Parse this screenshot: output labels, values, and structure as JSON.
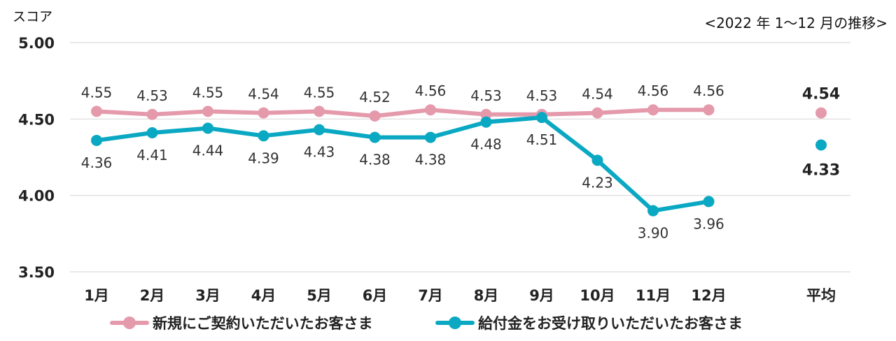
{
  "chart_data": {
    "type": "line",
    "ylabel": "スコア",
    "subtitle": "<2022 年 1〜12 月の推移>",
    "ylim": [
      3.5,
      5.0
    ],
    "yticks": [
      "5.00",
      "4.50",
      "4.00",
      "3.50"
    ],
    "ytick_values": [
      5.0,
      4.5,
      4.0,
      3.5
    ],
    "categories": [
      "1月",
      "2月",
      "3月",
      "4月",
      "5月",
      "6月",
      "7月",
      "8月",
      "9月",
      "10月",
      "11月",
      "12月"
    ],
    "average_label": "平均",
    "grid": true,
    "legend_position": "bottom",
    "series": [
      {
        "name": "新規にご契約いただいたお客さま",
        "color": "#e59aac",
        "values": [
          4.55,
          4.53,
          4.55,
          4.54,
          4.55,
          4.52,
          4.56,
          4.53,
          4.53,
          4.54,
          4.56,
          4.56
        ],
        "labels": [
          "4.55",
          "4.53",
          "4.55",
          "4.54",
          "4.55",
          "4.52",
          "4.56",
          "4.53",
          "4.53",
          "4.54",
          "4.56",
          "4.56"
        ],
        "average": 4.54,
        "average_label": "4.54"
      },
      {
        "name": "給付金をお受け取りいただいたお客さま",
        "color": "#0aa8c2",
        "values": [
          4.36,
          4.41,
          4.44,
          4.39,
          4.43,
          4.38,
          4.38,
          4.48,
          4.51,
          4.23,
          3.9,
          3.96
        ],
        "labels": [
          "4.36",
          "4.41",
          "4.44",
          "4.39",
          "4.43",
          "4.38",
          "4.38",
          "4.48",
          "4.51",
          "4.23",
          "3.90",
          "3.96"
        ],
        "average": 4.33,
        "average_label": "4.33"
      }
    ]
  }
}
